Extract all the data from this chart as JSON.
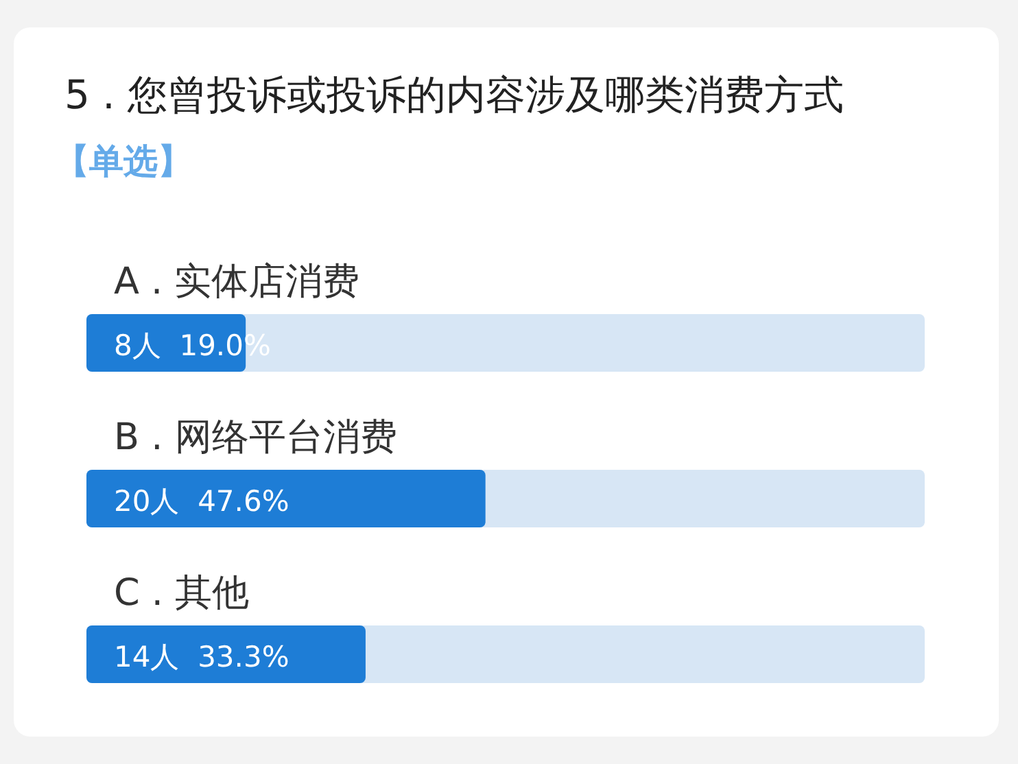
{
  "chart_data": {
    "type": "bar",
    "orientation": "horizontal",
    "title": "5 . 您曾投诉或投诉的内容涉及哪类消费方式",
    "subtitle": "【单选】",
    "categories": [
      "A . 实体店消费",
      "B . 网络平台消费",
      "C . 其他"
    ],
    "values": [
      19.0,
      47.6,
      33.3
    ],
    "value_labels": [
      "8人  19.0%",
      "20人  47.6%",
      "14人  33.3%"
    ],
    "color": "#1e7dd6",
    "xlim": [
      0,
      100
    ],
    "tick_labels": "y"
  }
}
